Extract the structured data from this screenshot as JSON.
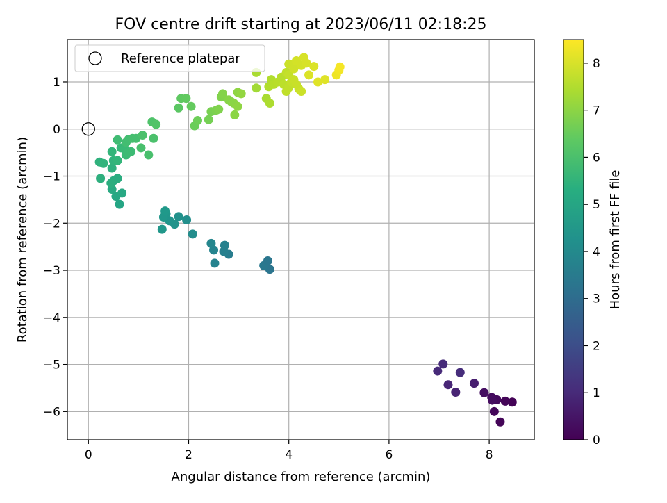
{
  "chart_data": {
    "type": "scatter",
    "title": "FOV centre drift starting at 2023/06/11 02:18:25",
    "xlabel": "Angular distance from reference (arcmin)",
    "ylabel": "Rotation from reference (arcmin)",
    "xlim": [
      -0.42,
      8.9
    ],
    "ylim": [
      -6.6,
      1.9
    ],
    "x_ticks": [
      0,
      2,
      4,
      6,
      8
    ],
    "x_tick_labels": [
      "0",
      "2",
      "4",
      "6",
      "8"
    ],
    "y_ticks": [
      1,
      0,
      -1,
      -2,
      -3,
      -4,
      -5,
      -6
    ],
    "y_tick_labels": [
      "1",
      "0",
      "−1",
      "−2",
      "−3",
      "−4",
      "−5",
      "−6"
    ],
    "grid": true,
    "legend": {
      "position": "top-left",
      "entries": [
        {
          "label": "Reference platepar",
          "marker": "open-circle"
        }
      ]
    },
    "reference_point": {
      "x": 0,
      "y": 0
    },
    "colorbar": {
      "label": "Hours from first FF file",
      "range": [
        0,
        8.5
      ],
      "ticks": [
        0,
        1,
        2,
        3,
        4,
        5,
        6,
        7,
        8
      ],
      "tick_labels": [
        "0",
        "1",
        "2",
        "3",
        "4",
        "5",
        "6",
        "7",
        "8"
      ],
      "colormap": "viridis"
    },
    "points": [
      {
        "x": 8.22,
        "y": -6.22,
        "t": 0.1
      },
      {
        "x": 8.1,
        "y": -6.0,
        "t": 0.15
      },
      {
        "x": 8.46,
        "y": -5.8,
        "t": 0.05
      },
      {
        "x": 8.32,
        "y": -5.78,
        "t": 0.1
      },
      {
        "x": 8.15,
        "y": -5.75,
        "t": 0.2
      },
      {
        "x": 8.05,
        "y": -5.7,
        "t": 0.25
      },
      {
        "x": 8.06,
        "y": -5.76,
        "t": 0.3
      },
      {
        "x": 7.9,
        "y": -5.6,
        "t": 0.35
      },
      {
        "x": 7.7,
        "y": -5.4,
        "t": 0.7
      },
      {
        "x": 7.33,
        "y": -5.59,
        "t": 0.85
      },
      {
        "x": 7.18,
        "y": -5.43,
        "t": 0.9
      },
      {
        "x": 6.97,
        "y": -5.14,
        "t": 1.0
      },
      {
        "x": 7.08,
        "y": -4.99,
        "t": 1.05
      },
      {
        "x": 7.42,
        "y": -5.17,
        "t": 1.1
      },
      {
        "x": 3.62,
        "y": -2.98,
        "t": 3.3
      },
      {
        "x": 3.5,
        "y": -2.9,
        "t": 3.4
      },
      {
        "x": 3.58,
        "y": -2.8,
        "t": 3.35
      },
      {
        "x": 2.8,
        "y": -2.66,
        "t": 3.6
      },
      {
        "x": 2.7,
        "y": -2.6,
        "t": 3.7
      },
      {
        "x": 2.72,
        "y": -2.47,
        "t": 3.75
      },
      {
        "x": 2.52,
        "y": -2.85,
        "t": 3.8
      },
      {
        "x": 2.5,
        "y": -2.57,
        "t": 3.85
      },
      {
        "x": 2.45,
        "y": -2.43,
        "t": 3.9
      },
      {
        "x": 2.08,
        "y": -2.23,
        "t": 4.15
      },
      {
        "x": 1.96,
        "y": -1.93,
        "t": 4.2
      },
      {
        "x": 1.8,
        "y": -1.86,
        "t": 4.3
      },
      {
        "x": 1.72,
        "y": -2.02,
        "t": 4.35
      },
      {
        "x": 1.62,
        "y": -1.95,
        "t": 4.4
      },
      {
        "x": 1.55,
        "y": -1.8,
        "t": 4.45
      },
      {
        "x": 1.5,
        "y": -1.87,
        "t": 4.5
      },
      {
        "x": 1.53,
        "y": -1.74,
        "t": 4.55
      },
      {
        "x": 1.47,
        "y": -2.13,
        "t": 4.5
      },
      {
        "x": 0.62,
        "y": -1.6,
        "t": 5.0
      },
      {
        "x": 0.55,
        "y": -1.43,
        "t": 5.05
      },
      {
        "x": 0.67,
        "y": -1.36,
        "t": 5.1
      },
      {
        "x": 0.47,
        "y": -1.28,
        "t": 5.15
      },
      {
        "x": 0.5,
        "y": -1.1,
        "t": 5.2
      },
      {
        "x": 0.58,
        "y": -1.05,
        "t": 5.25
      },
      {
        "x": 0.45,
        "y": -1.15,
        "t": 5.3
      },
      {
        "x": 0.24,
        "y": -1.05,
        "t": 5.35
      },
      {
        "x": 0.22,
        "y": -0.7,
        "t": 5.45
      },
      {
        "x": 0.3,
        "y": -0.73,
        "t": 5.5
      },
      {
        "x": 0.47,
        "y": -0.83,
        "t": 5.4
      },
      {
        "x": 0.5,
        "y": -0.67,
        "t": 5.5
      },
      {
        "x": 0.58,
        "y": -0.67,
        "t": 5.6
      },
      {
        "x": 0.47,
        "y": -0.48,
        "t": 5.6
      },
      {
        "x": 0.65,
        "y": -0.4,
        "t": 5.7
      },
      {
        "x": 0.72,
        "y": -0.42,
        "t": 5.75
      },
      {
        "x": 0.75,
        "y": -0.55,
        "t": 5.75
      },
      {
        "x": 0.8,
        "y": -0.5,
        "t": 5.8
      },
      {
        "x": 0.85,
        "y": -0.48,
        "t": 5.8
      },
      {
        "x": 0.58,
        "y": -0.23,
        "t": 5.85
      },
      {
        "x": 0.75,
        "y": -0.28,
        "t": 5.9
      },
      {
        "x": 0.8,
        "y": -0.22,
        "t": 5.9
      },
      {
        "x": 0.88,
        "y": -0.2,
        "t": 5.95
      },
      {
        "x": 0.95,
        "y": -0.2,
        "t": 5.95
      },
      {
        "x": 1.05,
        "y": -0.4,
        "t": 6.0
      },
      {
        "x": 1.2,
        "y": -0.55,
        "t": 6.0
      },
      {
        "x": 1.3,
        "y": -0.2,
        "t": 6.05
      },
      {
        "x": 1.08,
        "y": -0.13,
        "t": 6.05
      },
      {
        "x": 1.27,
        "y": 0.15,
        "t": 6.1
      },
      {
        "x": 1.35,
        "y": 0.1,
        "t": 6.15
      },
      {
        "x": 1.8,
        "y": 0.45,
        "t": 6.3
      },
      {
        "x": 1.85,
        "y": 0.65,
        "t": 6.35
      },
      {
        "x": 1.95,
        "y": 0.65,
        "t": 6.4
      },
      {
        "x": 2.05,
        "y": 0.48,
        "t": 6.45
      },
      {
        "x": 2.12,
        "y": 0.07,
        "t": 6.55
      },
      {
        "x": 2.18,
        "y": 0.18,
        "t": 6.6
      },
      {
        "x": 2.4,
        "y": 0.2,
        "t": 6.7
      },
      {
        "x": 2.45,
        "y": 0.37,
        "t": 6.75
      },
      {
        "x": 2.55,
        "y": 0.4,
        "t": 6.8
      },
      {
        "x": 2.6,
        "y": 0.42,
        "t": 6.85
      },
      {
        "x": 2.65,
        "y": 0.68,
        "t": 6.85
      },
      {
        "x": 2.68,
        "y": 0.75,
        "t": 6.9
      },
      {
        "x": 2.8,
        "y": 0.62,
        "t": 6.95
      },
      {
        "x": 2.85,
        "y": 0.58,
        "t": 6.95
      },
      {
        "x": 2.9,
        "y": 0.55,
        "t": 7.0
      },
      {
        "x": 2.92,
        "y": 0.3,
        "t": 7.0
      },
      {
        "x": 2.98,
        "y": 0.48,
        "t": 7.05
      },
      {
        "x": 2.98,
        "y": 0.78,
        "t": 7.05
      },
      {
        "x": 3.05,
        "y": 0.75,
        "t": 7.1
      },
      {
        "x": 3.35,
        "y": 0.87,
        "t": 7.3
      },
      {
        "x": 3.35,
        "y": 1.2,
        "t": 7.4
      },
      {
        "x": 3.55,
        "y": 0.65,
        "t": 7.4
      },
      {
        "x": 3.62,
        "y": 0.55,
        "t": 7.45
      },
      {
        "x": 3.6,
        "y": 0.9,
        "t": 7.5
      },
      {
        "x": 3.65,
        "y": 1.05,
        "t": 7.5
      },
      {
        "x": 3.7,
        "y": 0.95,
        "t": 7.55
      },
      {
        "x": 3.78,
        "y": 1.0,
        "t": 7.6
      },
      {
        "x": 3.85,
        "y": 1.1,
        "t": 7.6
      },
      {
        "x": 3.9,
        "y": 0.95,
        "t": 7.65
      },
      {
        "x": 3.95,
        "y": 0.8,
        "t": 7.7
      },
      {
        "x": 4.0,
        "y": 0.88,
        "t": 7.7
      },
      {
        "x": 3.95,
        "y": 1.2,
        "t": 7.7
      },
      {
        "x": 4.0,
        "y": 1.15,
        "t": 7.75
      },
      {
        "x": 4.05,
        "y": 1.0,
        "t": 7.75
      },
      {
        "x": 4.1,
        "y": 1.05,
        "t": 7.8
      },
      {
        "x": 4.15,
        "y": 0.95,
        "t": 7.8
      },
      {
        "x": 4.2,
        "y": 0.85,
        "t": 7.8
      },
      {
        "x": 4.25,
        "y": 0.8,
        "t": 7.85
      },
      {
        "x": 4.0,
        "y": 1.38,
        "t": 7.85
      },
      {
        "x": 4.1,
        "y": 1.28,
        "t": 7.9
      },
      {
        "x": 4.12,
        "y": 1.4,
        "t": 7.9
      },
      {
        "x": 4.15,
        "y": 1.45,
        "t": 7.95
      },
      {
        "x": 4.25,
        "y": 1.35,
        "t": 7.95
      },
      {
        "x": 4.3,
        "y": 1.52,
        "t": 8.0
      },
      {
        "x": 4.35,
        "y": 1.4,
        "t": 8.0
      },
      {
        "x": 4.4,
        "y": 1.15,
        "t": 8.05
      },
      {
        "x": 4.5,
        "y": 1.33,
        "t": 8.05
      },
      {
        "x": 4.58,
        "y": 1.0,
        "t": 8.1
      },
      {
        "x": 4.72,
        "y": 1.05,
        "t": 8.1
      },
      {
        "x": 4.95,
        "y": 1.15,
        "t": 8.3
      },
      {
        "x": 5.0,
        "y": 1.25,
        "t": 8.35
      },
      {
        "x": 5.02,
        "y": 1.32,
        "t": 8.4
      }
    ]
  }
}
